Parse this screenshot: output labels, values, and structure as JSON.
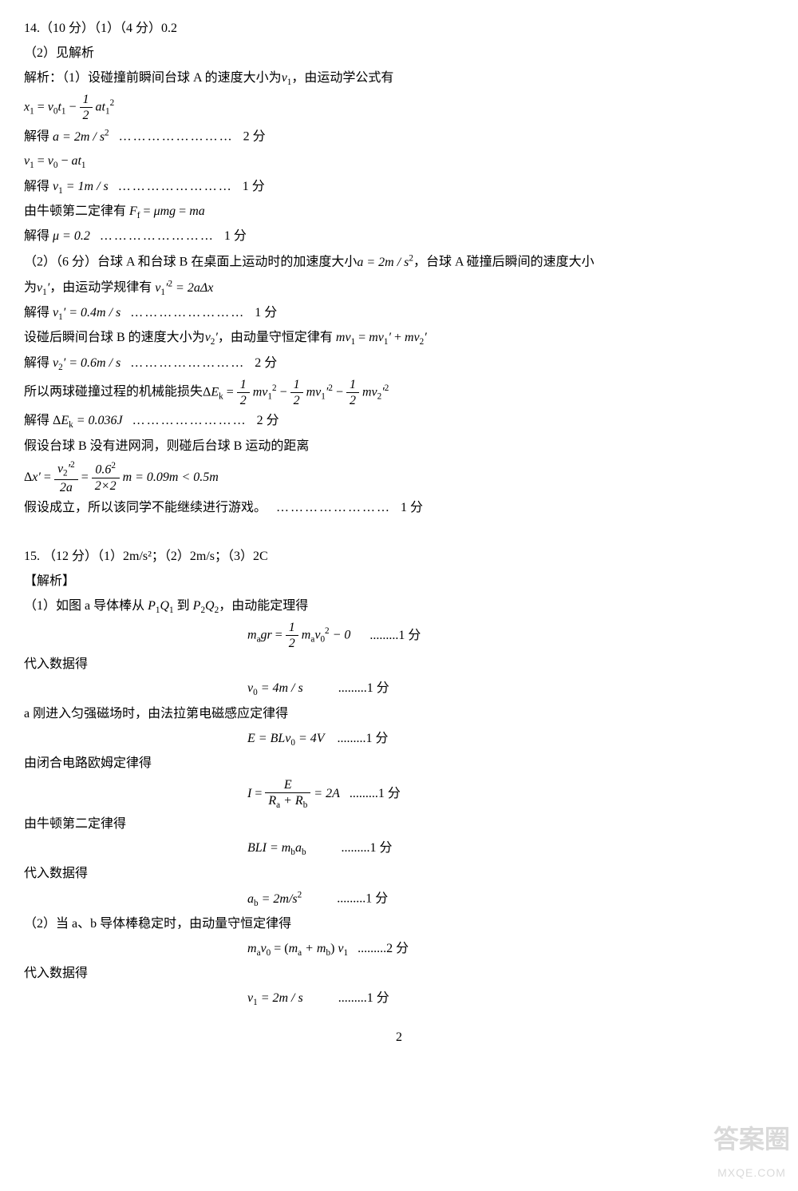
{
  "q14": {
    "header": "14.（10 分）（1）（4 分）0.2",
    "part2label": "（2）见解析",
    "analysis_label": "解析：（1）设碰撞前瞬间台球 A 的速度大小为",
    "v1": "v",
    "v1sub": "1",
    "analysis_tail": "，由运动学公式有",
    "eq1_lhs_x": "x",
    "eq1_lhs_xsub": "1",
    "eq1_rhs_v0": "v",
    "eq1_rhs_v0sub": "0",
    "eq1_rhs_t1": "t",
    "eq1_rhs_t1sub": "1",
    "eq1_frac_num": "1",
    "eq1_frac_den": "2",
    "eq1_rhs_a": "a",
    "eq1_rhs_t1b": "t",
    "eq1_rhs_t1bsub": "1",
    "eq1_rhs_sq": "2",
    "solve_a": "解得 ",
    "a_eq": "a = 2m / s",
    "a_sq": "2",
    "dots": "……………………",
    "pts2": "2 分",
    "pts1": "1 分",
    "eq_v1": "v",
    "eq_v1sub": "1",
    "eq_v0": "v",
    "eq_v0sub": "0",
    "eq_at": "at",
    "eq_atsub": "1",
    "solve_v1": "解得 ",
    "v1_eq": "v",
    "v1_eqsub": "1",
    "v1_val": " = 1m / s",
    "newton2": "由牛顿第二定律有 ",
    "Ff": "F",
    "Ffsub": "f",
    "mu": "μ",
    "mg": "mg",
    "ma": "ma",
    "solve_mu": "解得 ",
    "mu_val": "μ = 0.2",
    "part2_header": "（2）（6 分）台球 A 和台球 B 在桌面上运动时的加速度大小",
    "a_val2": "a = 2m / s",
    "a_val2_sq": "2",
    "part2_tail": "，台球 A 碰撞后瞬间的速度大小",
    "part2_line2a": "为",
    "v1p": "v",
    "v1psub": "1",
    "v1pprime": "′",
    "part2_line2b": "，由运动学规律有 ",
    "v1p_sq": "v",
    "v1p_sqsub": "1",
    "v1p_sqprime": "′",
    "v1p_sqexp": "2",
    "eq_2adx": " = 2aΔx",
    "solve_v1p": "解得 ",
    "v1p_val": "v",
    "v1p_valsub": "1",
    "v1p_valprime": "′",
    "v1p_valrhs": " = 0.4m / s",
    "line_v2": "设碰后瞬间台球 B 的速度大小为",
    "v2p": "v",
    "v2psub": "2",
    "v2pprime": "′",
    "line_v2b": "，由动量守恒定律有 ",
    "mom_lhs": "mv",
    "mom_lhssub": "1",
    "mom_r1": "mv",
    "mom_r1sub": "1",
    "mom_r1p": "′",
    "mom_r2": "mv",
    "mom_r2sub": "2",
    "mom_r2p": "′",
    "solve_v2p": "解得 ",
    "v2p_val": "v",
    "v2p_valsub": "2",
    "v2p_valprime": "′",
    "v2p_valrhs": " = 0.6m / s",
    "kinE_intro": "所以两球碰撞过程的机械能损失 ",
    "dEk": "ΔE",
    "dEksub": "k",
    "half": "1",
    "half_den": "2",
    "mv1sq": "mv",
    "mv1sqsub": "1",
    "mv1sqexp": "2",
    "mv1psq": "mv",
    "mv1psqsub": "1",
    "mv1psqp": "′",
    "mv1psqexp": "2",
    "mv2psq": "mv",
    "mv2psqsub": "2",
    "mv2psqp": "′",
    "mv2psqexp": "2",
    "solve_dEk": "解得 ",
    "dEk_val": "ΔE",
    "dEk_valsub": "k",
    "dEk_valrhs": " = 0.036J",
    "assume": "假设台球 B 没有进网洞，则碰后台球 B 运动的距离",
    "dxp": "Δx′",
    "frac_v2sq_num": "v",
    "frac_v2sq_numsub": "2",
    "frac_v2sq_nump": "′",
    "frac_v2sq_numexp": "2",
    "frac_v2sq_den": "2a",
    "frac_num2": "0.6",
    "frac_num2exp": "2",
    "frac_den2": "2×2",
    "dx_result": " m = 0.09m < 0.5m",
    "conclusion": "假设成立，所以该同学不能继续进行游戏。"
  },
  "q15": {
    "header": "15. （12 分）（1）2m/s²；（2）2m/s；（3）2C",
    "analysis": "【解析】",
    "p1_intro": "（1）如图 a 导体棒从 ",
    "PQ1": "P",
    "PQ1sub": "1",
    "Q1": "Q",
    "Q1sub": "1",
    "to": " 到 ",
    "PQ2": "P",
    "PQ2sub": "2",
    "Q2": "Q",
    "Q2sub": "2",
    "p1_tail": "，由动能定理得",
    "eq1_lhs": "m",
    "eq1_lhssub": "a",
    "eq1_gr": "gr",
    "eq1_half_num": "1",
    "eq1_half_den": "2",
    "eq1_rhs_m": "m",
    "eq1_rhs_msub": "a",
    "eq1_rhs_v0": "v",
    "eq1_rhs_v0sub": "0",
    "eq1_rhs_v0exp": "2",
    "eq1_minus0": " − 0",
    "dots2": ".........",
    "substitute": "代入数据得",
    "v0_eq": "v",
    "v0_eqsub": "0",
    "v0_val": " = 4m / s",
    "faraday_intro": "a 刚进入匀强磁场时，由法拉第电磁感应定律得",
    "E_eq": "E = BLv",
    "E_eqsub": "0",
    "E_val": " = 4V",
    "ohm_intro": "由闭合电路欧姆定律得",
    "I_lhs": "I",
    "I_num": "E",
    "I_den_Ra": "R",
    "I_den_Rasub": "a",
    "I_den_plus": " + ",
    "I_den_Rb": "R",
    "I_den_Rbsub": "b",
    "I_val": " = 2A",
    "newton2b": "由牛顿第二定律得",
    "BLI": "BLI = m",
    "BLI_msub": "b",
    "BLI_a": "a",
    "BLI_asub": "b",
    "ab_eq": "a",
    "ab_eqsub": "b",
    "ab_val": " = 2m/s",
    "ab_valexp": "2",
    "p2_intro": "（2）当 a、b 导体棒稳定时，由动量守恒定律得",
    "mom2_ma": "m",
    "mom2_masub": "a",
    "mom2_v0": "v",
    "mom2_v0sub": "0",
    "mom2_paren_ma": "m",
    "mom2_paren_masub": "a",
    "mom2_plus": " + ",
    "mom2_paren_mb": "m",
    "mom2_paren_mbsub": "b",
    "mom2_v1": "v",
    "mom2_v1sub": "1",
    "v1f_eq": "v",
    "v1f_eqsub": "1",
    "v1f_val": " = 2m / s"
  },
  "pagenum": "2",
  "watermark_ch": "答案圈",
  "watermark_url": "MXQE.COM"
}
